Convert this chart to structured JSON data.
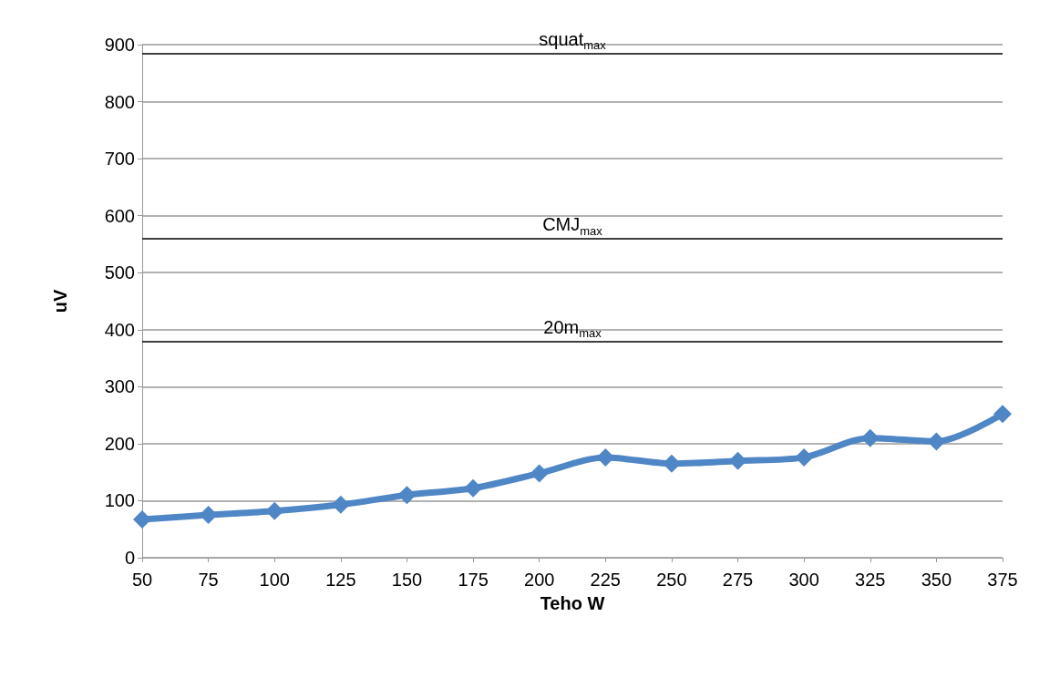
{
  "chart_data": {
    "type": "line",
    "xlabel": "Teho W",
    "ylabel": "uV",
    "categories": [
      "50",
      "75",
      "100",
      "125",
      "150",
      "175",
      "200",
      "225",
      "250",
      "275",
      "300",
      "325",
      "350",
      "375"
    ],
    "series": [
      {
        "color": "#4f86c6",
        "values": [
          67,
          75,
          82,
          93,
          110,
          122,
          148,
          176,
          165,
          170,
          176,
          210,
          204,
          252
        ]
      }
    ],
    "ylim": [
      0,
      900
    ],
    "yticks": [
      0,
      100,
      200,
      300,
      400,
      500,
      600,
      700,
      800,
      900
    ],
    "grid": "y",
    "marker": "diamond",
    "line_style": "solid",
    "ref_lines": [
      {
        "axis": "y",
        "value": 885,
        "label": "squat$_{max}$",
        "color": "#000000"
      },
      {
        "axis": "y",
        "value": 560,
        "label": "CMJ$_{max}$",
        "color": "#000000"
      },
      {
        "axis": "y",
        "value": 380,
        "label": "20m$_{max}$",
        "color": "#000000"
      }
    ]
  }
}
